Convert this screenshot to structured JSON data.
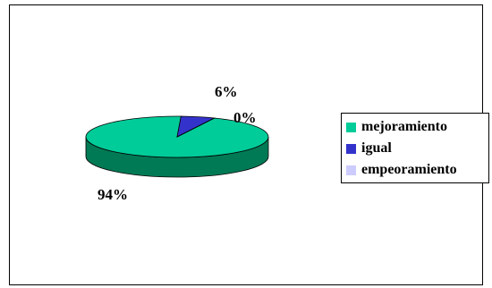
{
  "chart_data": {
    "type": "pie",
    "title": "",
    "slices": [
      {
        "label": "mejoramiento",
        "value": 94,
        "display": "94%",
        "color": "#00CC99",
        "shade": "#007A55"
      },
      {
        "label": "igual",
        "value": 6,
        "display": "6%",
        "color": "#3333CC",
        "shade": "#1A1A80"
      },
      {
        "label": "empeoramiento",
        "value": 0,
        "display": "0%",
        "color": "#CCCCFF",
        "shade": "#9999CC"
      }
    ],
    "legend_position": "right",
    "style": "3d"
  }
}
